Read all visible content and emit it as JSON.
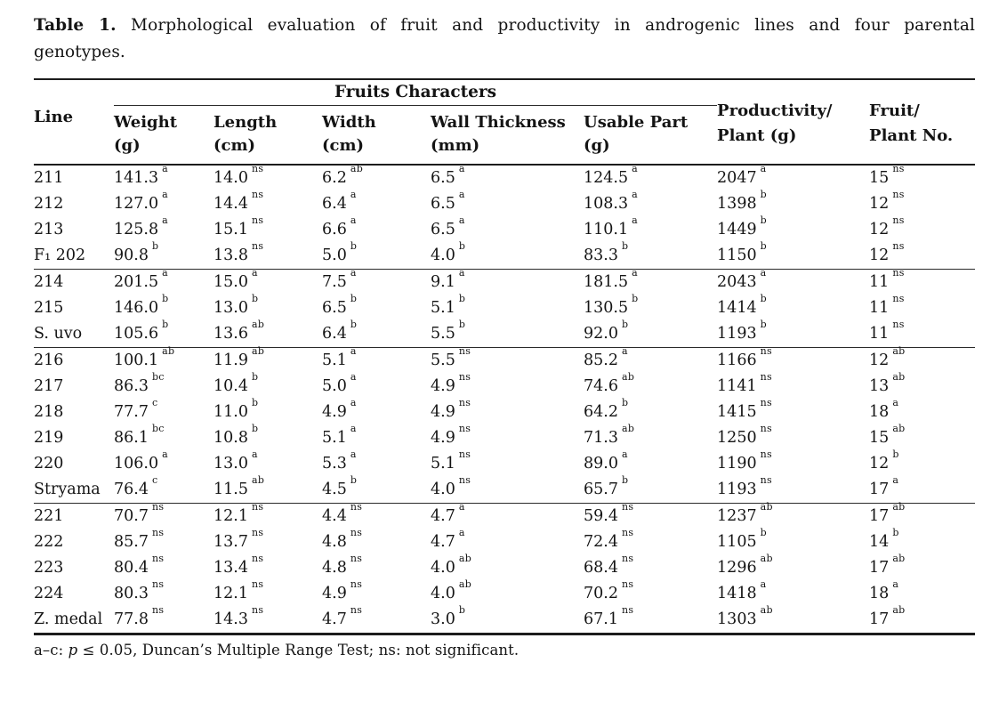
{
  "title": {
    "label": "Table 1.",
    "text": "Morphological evaluation of fruit and productivity in androgenic lines and four parental genotypes."
  },
  "table": {
    "spanner": "Fruits Characters",
    "columns": [
      {
        "line1": "Line",
        "line2": ""
      },
      {
        "line1": "Weight",
        "line2": "(g)"
      },
      {
        "line1": "Length",
        "line2": "(cm)"
      },
      {
        "line1": "Width",
        "line2": "(cm)"
      },
      {
        "line1": "Wall Thickness",
        "line2": "(mm)"
      },
      {
        "line1": "Usable Part",
        "line2": "(g)"
      },
      {
        "line1": "Productivity/",
        "line2": "Plant (g)"
      },
      {
        "line1": "Fruit/",
        "line2": "Plant No."
      }
    ],
    "groups": [
      {
        "rows": [
          {
            "line": "211",
            "values": [
              [
                "141.3",
                "a"
              ],
              [
                "14.0",
                "ns"
              ],
              [
                "6.2",
                "ab"
              ],
              [
                "6.5",
                "a"
              ],
              [
                "124.5",
                "a"
              ],
              [
                "2047",
                "a"
              ],
              [
                "15",
                "ns"
              ]
            ]
          },
          {
            "line": "212",
            "values": [
              [
                "127.0",
                "a"
              ],
              [
                "14.4",
                "ns"
              ],
              [
                "6.4",
                "a"
              ],
              [
                "6.5",
                "a"
              ],
              [
                "108.3",
                "a"
              ],
              [
                "1398",
                "b"
              ],
              [
                "12",
                "ns"
              ]
            ]
          },
          {
            "line": "213",
            "values": [
              [
                "125.8",
                "a"
              ],
              [
                "15.1",
                "ns"
              ],
              [
                "6.6",
                "a"
              ],
              [
                "6.5",
                "a"
              ],
              [
                "110.1",
                "a"
              ],
              [
                "1449",
                "b"
              ],
              [
                "12",
                "ns"
              ]
            ]
          },
          {
            "line": "F₁ 202",
            "values": [
              [
                "90.8",
                "b"
              ],
              [
                "13.8",
                "ns"
              ],
              [
                "5.0",
                "b"
              ],
              [
                "4.0",
                "b"
              ],
              [
                "83.3",
                "b"
              ],
              [
                "1150",
                "b"
              ],
              [
                "12",
                "ns"
              ]
            ]
          }
        ]
      },
      {
        "rows": [
          {
            "line": "214",
            "values": [
              [
                "201.5",
                "a"
              ],
              [
                "15.0",
                "a"
              ],
              [
                "7.5",
                "a"
              ],
              [
                "9.1",
                "a"
              ],
              [
                "181.5",
                "a"
              ],
              [
                "2043",
                "a"
              ],
              [
                "11",
                "ns"
              ]
            ]
          },
          {
            "line": "215",
            "values": [
              [
                "146.0",
                "b"
              ],
              [
                "13.0",
                "b"
              ],
              [
                "6.5",
                "b"
              ],
              [
                "5.1",
                "b"
              ],
              [
                "130.5",
                "b"
              ],
              [
                "1414",
                "b"
              ],
              [
                "11",
                "ns"
              ]
            ]
          },
          {
            "line": "S. uvo",
            "values": [
              [
                "105.6",
                "b"
              ],
              [
                "13.6",
                "ab"
              ],
              [
                "6.4",
                "b"
              ],
              [
                "5.5",
                "b"
              ],
              [
                "92.0",
                "b"
              ],
              [
                "1193",
                "b"
              ],
              [
                "11",
                "ns"
              ]
            ]
          }
        ]
      },
      {
        "rows": [
          {
            "line": "216",
            "values": [
              [
                "100.1",
                "ab"
              ],
              [
                "11.9",
                "ab"
              ],
              [
                "5.1",
                "a"
              ],
              [
                "5.5",
                "ns"
              ],
              [
                "85.2",
                "a"
              ],
              [
                "1166",
                "ns"
              ],
              [
                "12",
                "ab"
              ]
            ]
          },
          {
            "line": "217",
            "values": [
              [
                "86.3",
                "bc"
              ],
              [
                "10.4",
                "b"
              ],
              [
                "5.0",
                "a"
              ],
              [
                "4.9",
                "ns"
              ],
              [
                "74.6",
                "ab"
              ],
              [
                "1141",
                "ns"
              ],
              [
                "13",
                "ab"
              ]
            ]
          },
          {
            "line": "218",
            "values": [
              [
                "77.7",
                "c"
              ],
              [
                "11.0",
                "b"
              ],
              [
                "4.9",
                "a"
              ],
              [
                "4.9",
                "ns"
              ],
              [
                "64.2",
                "b"
              ],
              [
                "1415",
                "ns"
              ],
              [
                "18",
                "a"
              ]
            ]
          },
          {
            "line": "219",
            "values": [
              [
                "86.1",
                "bc"
              ],
              [
                "10.8",
                "b"
              ],
              [
                "5.1",
                "a"
              ],
              [
                "4.9",
                "ns"
              ],
              [
                "71.3",
                "ab"
              ],
              [
                "1250",
                "ns"
              ],
              [
                "15",
                "ab"
              ]
            ]
          },
          {
            "line": "220",
            "values": [
              [
                "106.0",
                "a"
              ],
              [
                "13.0",
                "a"
              ],
              [
                "5.3",
                "a"
              ],
              [
                "5.1",
                "ns"
              ],
              [
                "89.0",
                "a"
              ],
              [
                "1190",
                "ns"
              ],
              [
                "12",
                "b"
              ]
            ]
          },
          {
            "line": "Stryama",
            "values": [
              [
                "76.4",
                "c"
              ],
              [
                "11.5",
                "ab"
              ],
              [
                "4.5",
                "b"
              ],
              [
                "4.0",
                "ns"
              ],
              [
                "65.7",
                "b"
              ],
              [
                "1193",
                "ns"
              ],
              [
                "17",
                "a"
              ]
            ]
          }
        ]
      },
      {
        "rows": [
          {
            "line": "221",
            "values": [
              [
                "70.7",
                "ns"
              ],
              [
                "12.1",
                "ns"
              ],
              [
                "4.4",
                "ns"
              ],
              [
                "4.7",
                "a"
              ],
              [
                "59.4",
                "ns"
              ],
              [
                "1237",
                "ab"
              ],
              [
                "17",
                "ab"
              ]
            ]
          },
          {
            "line": "222",
            "values": [
              [
                "85.7",
                "ns"
              ],
              [
                "13.7",
                "ns"
              ],
              [
                "4.8",
                "ns"
              ],
              [
                "4.7",
                "a"
              ],
              [
                "72.4",
                "ns"
              ],
              [
                "1105",
                "b"
              ],
              [
                "14",
                "b"
              ]
            ]
          },
          {
            "line": "223",
            "values": [
              [
                "80.4",
                "ns"
              ],
              [
                "13.4",
                "ns"
              ],
              [
                "4.8",
                "ns"
              ],
              [
                "4.0",
                "ab"
              ],
              [
                "68.4",
                "ns"
              ],
              [
                "1296",
                "ab"
              ],
              [
                "17",
                "ab"
              ]
            ]
          },
          {
            "line": "224",
            "values": [
              [
                "80.3",
                "ns"
              ],
              [
                "12.1",
                "ns"
              ],
              [
                "4.9",
                "ns"
              ],
              [
                "4.0",
                "ab"
              ],
              [
                "70.2",
                "ns"
              ],
              [
                "1418",
                "a"
              ],
              [
                "18",
                "a"
              ]
            ]
          },
          {
            "line": "Z. medal",
            "values": [
              [
                "77.8",
                "ns"
              ],
              [
                "14.3",
                "ns"
              ],
              [
                "4.7",
                "ns"
              ],
              [
                "3.0",
                "b"
              ],
              [
                "67.1",
                "ns"
              ],
              [
                "1303",
                "ab"
              ],
              [
                "17",
                "ab"
              ]
            ]
          }
        ]
      }
    ]
  },
  "footnote": {
    "prefix": "a–c: ",
    "p": "p",
    "suffix": " ≤ 0.05, Duncan’s Multiple Range Test; ns: not significant."
  }
}
